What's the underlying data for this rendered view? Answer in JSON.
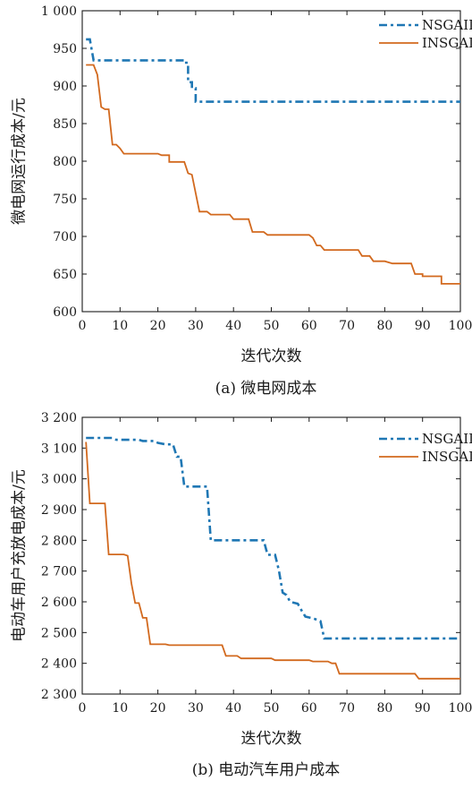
{
  "chart_data": [
    {
      "type": "line",
      "caption": "(a) 微电网成本",
      "xlabel": "迭代次数",
      "ylabel": "微电网运行成本/元",
      "xlim": [
        0,
        100
      ],
      "ylim": [
        600,
        1000
      ],
      "xticks": [
        0,
        10,
        20,
        30,
        40,
        50,
        60,
        70,
        80,
        90,
        100
      ],
      "yticks": [
        600,
        650,
        700,
        750,
        800,
        850,
        900,
        950,
        1000
      ],
      "ytick_labels": [
        "600",
        "650",
        "700",
        "750",
        "800",
        "850",
        "900",
        "950",
        "1 000"
      ],
      "legend_position": "top-right",
      "grid": false,
      "series": [
        {
          "name": "NSGAII",
          "color": "#1f77b4",
          "dash": "dashdot",
          "points": [
            [
              1,
              962
            ],
            [
              2,
              962
            ],
            [
              3,
              934
            ],
            [
              27,
              934
            ],
            [
              27,
              931
            ],
            [
              28,
              931
            ],
            [
              28,
              905
            ],
            [
              29,
              905
            ],
            [
              29,
              897
            ],
            [
              30,
              897
            ],
            [
              30,
              879
            ],
            [
              100,
              879
            ]
          ]
        },
        {
          "name": "INSGAII",
          "color": "#d2691e",
          "dash": "solid",
          "points": [
            [
              1,
              928
            ],
            [
              3,
              928
            ],
            [
              4,
              915
            ],
            [
              5,
              872
            ],
            [
              6,
              869
            ],
            [
              7,
              869
            ],
            [
              8,
              822
            ],
            [
              9,
              822
            ],
            [
              10,
              817
            ],
            [
              11,
              810
            ],
            [
              20,
              810
            ],
            [
              21,
              808
            ],
            [
              23,
              808
            ],
            [
              23,
              799
            ],
            [
              27,
              799
            ],
            [
              28,
              784
            ],
            [
              29,
              782
            ],
            [
              31,
              733
            ],
            [
              33,
              733
            ],
            [
              34,
              729
            ],
            [
              39,
              729
            ],
            [
              40,
              723
            ],
            [
              44,
              723
            ],
            [
              45,
              706
            ],
            [
              48,
              706
            ],
            [
              49,
              702
            ],
            [
              60,
              702
            ],
            [
              61,
              698
            ],
            [
              62,
              688
            ],
            [
              63,
              688
            ],
            [
              64,
              682
            ],
            [
              73,
              682
            ],
            [
              74,
              674
            ],
            [
              76,
              674
            ],
            [
              77,
              667
            ],
            [
              80,
              667
            ],
            [
              82,
              664
            ],
            [
              87,
              664
            ],
            [
              88,
              650
            ],
            [
              90,
              650
            ],
            [
              90,
              647
            ],
            [
              95,
              647
            ],
            [
              95,
              637
            ],
            [
              100,
              637
            ]
          ]
        }
      ]
    },
    {
      "type": "line",
      "caption": "(b) 电动汽车用户成本",
      "xlabel": "迭代次数",
      "ylabel": "电动车用户充放电成本/元",
      "xlim": [
        0,
        100
      ],
      "ylim": [
        2300,
        3200
      ],
      "xticks": [
        0,
        10,
        20,
        30,
        40,
        50,
        60,
        70,
        80,
        90,
        100
      ],
      "yticks": [
        2300,
        2400,
        2500,
        2600,
        2700,
        2800,
        2900,
        3000,
        3100,
        3200
      ],
      "ytick_labels": [
        "2 300",
        "2 400",
        "2 500",
        "2 600",
        "2 700",
        "2 800",
        "2 900",
        "3 000",
        "3 100",
        "3 200"
      ],
      "legend_position": "top-right",
      "grid": false,
      "series": [
        {
          "name": "NSGAII",
          "color": "#1f77b4",
          "dash": "dashdot",
          "points": [
            [
              1,
              3133
            ],
            [
              8,
              3133
            ],
            [
              9,
              3127
            ],
            [
              15,
              3127
            ],
            [
              16,
              3123
            ],
            [
              19,
              3123
            ],
            [
              20,
              3117
            ],
            [
              22,
              3112
            ],
            [
              24,
              3112
            ],
            [
              25,
              3072
            ],
            [
              26,
              3072
            ],
            [
              27,
              2975
            ],
            [
              33,
              2975
            ],
            [
              34,
              2800
            ],
            [
              48,
              2800
            ],
            [
              49,
              2753
            ],
            [
              51,
              2753
            ],
            [
              52,
              2702
            ],
            [
              53,
              2630
            ],
            [
              54,
              2622
            ],
            [
              55,
              2600
            ],
            [
              57,
              2594
            ],
            [
              58,
              2572
            ],
            [
              59,
              2552
            ],
            [
              61,
              2546
            ],
            [
              62,
              2542
            ],
            [
              63,
              2537
            ],
            [
              64,
              2481
            ],
            [
              100,
              2481
            ]
          ]
        },
        {
          "name": "INSGAII",
          "color": "#d2691e",
          "dash": "solid",
          "points": [
            [
              1,
              3120
            ],
            [
              2,
              2920
            ],
            [
              6,
              2920
            ],
            [
              7,
              2754
            ],
            [
              11,
              2754
            ],
            [
              12,
              2750
            ],
            [
              13,
              2660
            ],
            [
              14,
              2596
            ],
            [
              15,
              2596
            ],
            [
              16,
              2548
            ],
            [
              17,
              2548
            ],
            [
              18,
              2462
            ],
            [
              22,
              2462
            ],
            [
              23,
              2459
            ],
            [
              37,
              2459
            ],
            [
              38,
              2424
            ],
            [
              41,
              2424
            ],
            [
              42,
              2416
            ],
            [
              50,
              2416
            ],
            [
              51,
              2410
            ],
            [
              60,
              2410
            ],
            [
              61,
              2406
            ],
            [
              65,
              2406
            ],
            [
              66,
              2400
            ],
            [
              67,
              2400
            ],
            [
              68,
              2366
            ],
            [
              88,
              2366
            ],
            [
              89,
              2350
            ],
            [
              100,
              2350
            ]
          ]
        }
      ]
    }
  ]
}
